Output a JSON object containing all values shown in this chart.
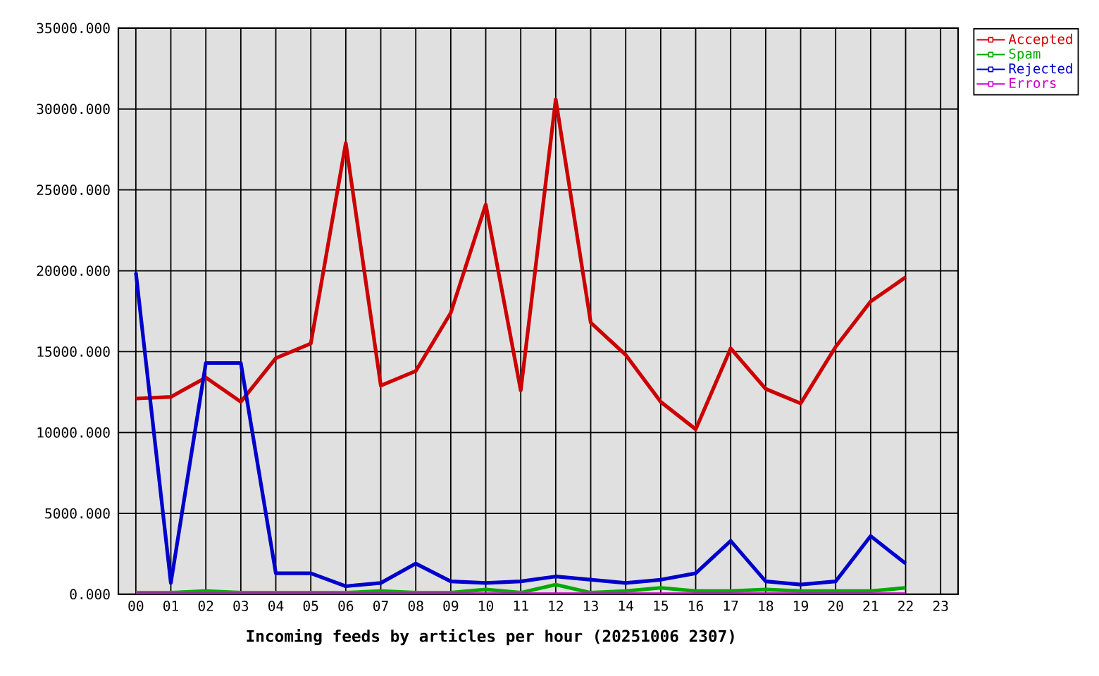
{
  "chart_data": {
    "type": "line",
    "xlabel": "Incoming feeds by articles per hour (20251006 2307)",
    "categories": [
      "00",
      "01",
      "02",
      "03",
      "04",
      "05",
      "06",
      "07",
      "08",
      "09",
      "10",
      "11",
      "12",
      "13",
      "14",
      "15",
      "16",
      "17",
      "18",
      "19",
      "20",
      "21",
      "22",
      "23"
    ],
    "ylim": [
      0,
      35000
    ],
    "yticks": [
      {
        "value": 0,
        "label": "0.000"
      },
      {
        "value": 5000,
        "label": "5000.000"
      },
      {
        "value": 10000,
        "label": "10000.000"
      },
      {
        "value": 15000,
        "label": "15000.000"
      },
      {
        "value": 20000,
        "label": "20000.000"
      },
      {
        "value": 25000,
        "label": "25000.000"
      },
      {
        "value": 30000,
        "label": "30000.000"
      },
      {
        "value": 35000,
        "label": "35000.000"
      }
    ],
    "grid": true,
    "legend": "top right",
    "series": [
      {
        "name": "Accepted",
        "color": "#cc0000",
        "values": [
          12100,
          12200,
          13400,
          11900,
          14600,
          15500,
          27900,
          12900,
          13800,
          17400,
          24100,
          12600,
          30600,
          16800,
          14800,
          11900,
          10200,
          15200,
          12700,
          11800,
          15300,
          18100,
          19600,
          null
        ]
      },
      {
        "name": "Spam",
        "color": "#00aa00",
        "values": [
          100,
          100,
          200,
          100,
          100,
          100,
          100,
          200,
          100,
          100,
          300,
          100,
          600,
          100,
          200,
          400,
          200,
          200,
          300,
          200,
          200,
          200,
          400,
          null
        ]
      },
      {
        "name": "Rejected",
        "color": "#0000cc",
        "values": [
          19900,
          700,
          14300,
          14300,
          1300,
          1300,
          500,
          700,
          1900,
          800,
          700,
          800,
          1100,
          900,
          700,
          900,
          1300,
          3300,
          800,
          600,
          800,
          3600,
          1900,
          null
        ]
      },
      {
        "name": "Errors",
        "color": "#cc00cc",
        "values": [
          0,
          0,
          0,
          0,
          0,
          0,
          0,
          0,
          0,
          0,
          0,
          0,
          0,
          0,
          0,
          0,
          0,
          0,
          0,
          0,
          0,
          0,
          0,
          null
        ]
      }
    ]
  }
}
